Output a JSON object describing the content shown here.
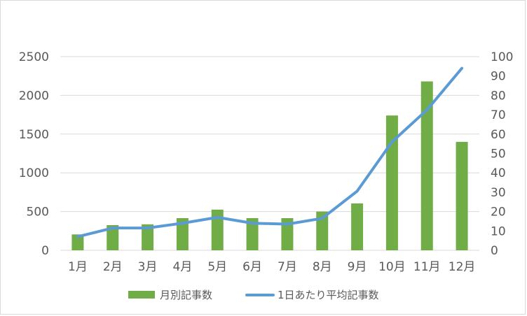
{
  "chart_data": {
    "type": "bar",
    "categories": [
      "1月",
      "2月",
      "3月",
      "4月",
      "5月",
      "6月",
      "7月",
      "8月",
      "9月",
      "10月",
      "11月",
      "12月"
    ],
    "series": [
      {
        "name": "月別記事数",
        "type": "bar",
        "axis": "left",
        "color": "#70ad47",
        "values": [
          205,
          325,
          335,
          415,
          525,
          415,
          415,
          500,
          605,
          1740,
          2180,
          1400
        ]
      },
      {
        "name": "1日あたり平均記事数",
        "type": "line",
        "axis": "right",
        "color": "#5b9bd5",
        "values": [
          7,
          11.5,
          11.5,
          14,
          17,
          14,
          13.5,
          16.5,
          30.5,
          56,
          72.5,
          94
        ]
      }
    ],
    "y_left": {
      "min": 0,
      "max": 2500,
      "ticks": [
        0,
        500,
        1000,
        1500,
        2000,
        2500
      ]
    },
    "y_right": {
      "min": 0,
      "max": 100,
      "ticks": [
        0,
        10,
        20,
        30,
        40,
        50,
        60,
        70,
        80,
        90,
        100
      ]
    },
    "grid": true,
    "legend_position": "bottom"
  }
}
